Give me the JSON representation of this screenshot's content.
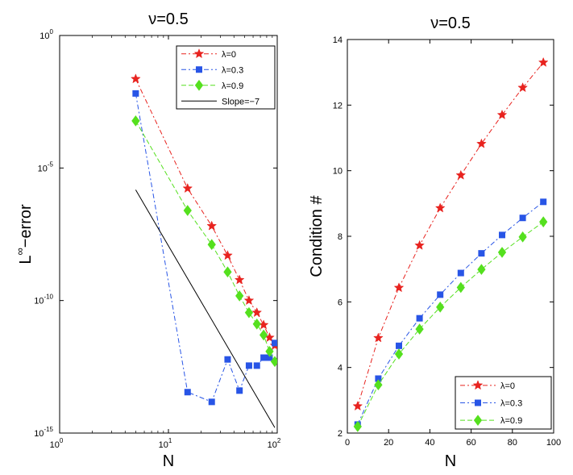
{
  "chart_data": [
    {
      "type": "line",
      "title": "ν=0.5",
      "xlabel": "N",
      "ylabel_main": "L",
      "ylabel_sup": "∞",
      "ylabel_rest": "−error",
      "xscale": "log",
      "yscale": "log",
      "xlim": [
        1,
        100
      ],
      "ylim": [
        1e-15,
        1
      ],
      "xticks": [
        {
          "value": 1,
          "base": "10",
          "exp": "0"
        },
        {
          "value": 10,
          "base": "10",
          "exp": "1"
        },
        {
          "value": 100,
          "base": "10",
          "exp": "2"
        }
      ],
      "yticks": [
        {
          "value": 1,
          "base": "10",
          "exp": "0"
        },
        {
          "value": 1e-05,
          "base": "10",
          "exp": "-5"
        },
        {
          "value": 1e-10,
          "base": "10",
          "exp": "-10"
        },
        {
          "value": 1e-15,
          "base": "10",
          "exp": "-15"
        }
      ],
      "legend_position": "top-right",
      "series": [
        {
          "name": "λ=0",
          "color": "#e8231f",
          "marker": "star",
          "dash": "6,3,2,3",
          "x": [
            5,
            15,
            25,
            35,
            45,
            55,
            65,
            75,
            85,
            95
          ],
          "y": [
            0.023,
            1.7e-06,
            6.5e-08,
            5e-09,
            6e-10,
            1e-10,
            3.5e-11,
            1.2e-11,
            4e-12,
            2e-12
          ]
        },
        {
          "name": "λ=0.3",
          "color": "#2855e6",
          "marker": "square",
          "dash": "6,3,2,3",
          "x": [
            5,
            15,
            25,
            35,
            45,
            55,
            65,
            75,
            85,
            95
          ],
          "y": [
            0.0065,
            3.5e-14,
            1.5e-14,
            6e-13,
            4e-14,
            3.5e-13,
            3.5e-13,
            7e-13,
            7e-13,
            2.5e-12
          ]
        },
        {
          "name": "λ=0.9",
          "color": "#55e01e",
          "marker": "diamond",
          "dash": "6,3",
          "x": [
            5,
            15,
            25,
            35,
            45,
            55,
            65,
            75,
            85,
            95
          ],
          "y": [
            0.0006,
            2.5e-07,
            1.3e-08,
            1.2e-09,
            1.5e-10,
            3.5e-11,
            1.3e-11,
            5e-12,
            1.2e-12,
            5e-13
          ]
        },
        {
          "name": "Slope=−7",
          "color": "#000000",
          "marker": "none",
          "dash": "",
          "x": [
            5,
            95
          ],
          "y": [
            1.5e-06,
            1.6e-15
          ]
        }
      ]
    },
    {
      "type": "line",
      "title": "ν=0.5",
      "xlabel": "N",
      "ylabel": "Condition #",
      "xscale": "linear",
      "yscale": "linear",
      "xlim": [
        0,
        100
      ],
      "ylim": [
        2,
        14
      ],
      "xticks": [
        0,
        20,
        40,
        60,
        80,
        100
      ],
      "yticks": [
        2,
        4,
        6,
        8,
        10,
        12,
        14
      ],
      "legend_position": "bottom-right",
      "series": [
        {
          "name": "λ=0",
          "color": "#e8231f",
          "marker": "star",
          "dash": "6,3,2,3",
          "x": [
            5,
            15,
            25,
            35,
            45,
            55,
            65,
            75,
            85,
            95
          ],
          "y": [
            2.82,
            4.9,
            6.43,
            7.72,
            8.86,
            9.86,
            10.82,
            11.7,
            12.53,
            13.3
          ]
        },
        {
          "name": "λ=0.3",
          "color": "#2855e6",
          "marker": "square",
          "dash": "6,3,2,3",
          "x": [
            5,
            15,
            25,
            35,
            45,
            55,
            65,
            75,
            85,
            95
          ],
          "y": [
            2.26,
            3.66,
            4.66,
            5.5,
            6.22,
            6.88,
            7.48,
            8.04,
            8.56,
            9.05
          ]
        },
        {
          "name": "λ=0.9",
          "color": "#55e01e",
          "marker": "diamond",
          "dash": "6,3",
          "x": [
            5,
            15,
            25,
            35,
            45,
            55,
            65,
            75,
            85,
            95
          ],
          "y": [
            2.2,
            3.47,
            4.41,
            5.17,
            5.84,
            6.44,
            6.99,
            7.51,
            7.98,
            8.44
          ]
        }
      ]
    }
  ]
}
